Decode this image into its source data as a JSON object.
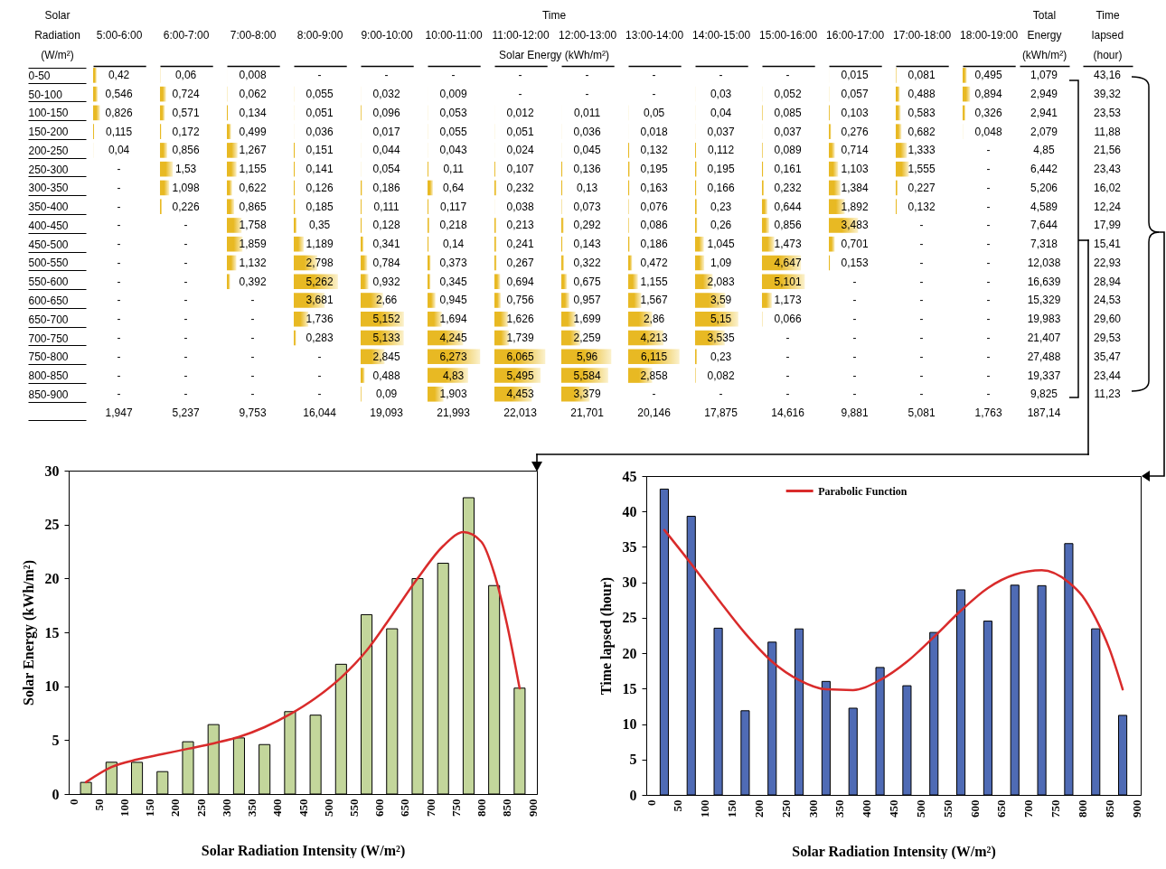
{
  "chart_data": [
    {
      "type": "heatmap",
      "xlabel": "Time",
      "ylabel": "Solar Radiation (W/m²)",
      "subtitle": "Solar Energy (kWh/m²)",
      "color": "#e8b923",
      "categories": [
        "5:00-6:00",
        "6:00-7:00",
        "7:00-8:00",
        "8:00-9:00",
        "9:00-10:00",
        "10:00-11:00",
        "11:00-12:00",
        "12:00-13:00",
        "13:00-14:00",
        "14:00-15:00",
        "15:00-16:00",
        "16:00-17:00",
        "17:00-18:00",
        "18:00-19:00"
      ],
      "y_categories": [
        "0-50",
        "50-100",
        "100-150",
        "150-200",
        "200-250",
        "250-300",
        "300-350",
        "350-400",
        "400-450",
        "450-500",
        "500-550",
        "550-600",
        "600-650",
        "650-700",
        "700-750",
        "750-800",
        "800-850",
        "850-900"
      ],
      "cells": [
        [
          0.42,
          0.06,
          0.008,
          null,
          null,
          null,
          null,
          null,
          null,
          null,
          null,
          0.015,
          0.081,
          0.495
        ],
        [
          0.546,
          0.724,
          0.062,
          0.055,
          0.032,
          0.009,
          null,
          null,
          null,
          0.03,
          0.052,
          0.057,
          0.488,
          0.894
        ],
        [
          0.826,
          0.571,
          0.134,
          0.051,
          0.096,
          0.053,
          0.012,
          0.011,
          0.05,
          0.04,
          0.085,
          0.103,
          0.583,
          0.326
        ],
        [
          0.115,
          0.172,
          0.499,
          0.036,
          0.017,
          0.055,
          0.051,
          0.036,
          0.018,
          0.037,
          0.037,
          0.276,
          0.682,
          0.048
        ],
        [
          0.04,
          0.856,
          1.267,
          0.151,
          0.044,
          0.043,
          0.024,
          0.045,
          0.132,
          0.112,
          0.089,
          0.714,
          1.333,
          null
        ],
        [
          null,
          1.53,
          1.155,
          0.141,
          0.054,
          0.11,
          0.107,
          0.136,
          0.195,
          0.195,
          0.161,
          1.103,
          1.555,
          null
        ],
        [
          null,
          1.098,
          0.622,
          0.126,
          0.186,
          0.64,
          0.232,
          0.13,
          0.163,
          0.166,
          0.232,
          1.384,
          0.227,
          null
        ],
        [
          null,
          0.226,
          0.865,
          0.185,
          0.111,
          0.117,
          0.038,
          0.073,
          0.076,
          0.23,
          0.644,
          1.892,
          0.132,
          null
        ],
        [
          null,
          null,
          1.758,
          0.35,
          0.128,
          0.218,
          0.213,
          0.292,
          0.086,
          0.26,
          0.856,
          3.483,
          null,
          null
        ],
        [
          null,
          null,
          1.859,
          1.189,
          0.341,
          0.14,
          0.241,
          0.143,
          0.186,
          1.045,
          1.473,
          0.701,
          null,
          null
        ],
        [
          null,
          null,
          1.132,
          2.798,
          0.784,
          0.373,
          0.267,
          0.322,
          0.472,
          1.09,
          4.647,
          0.153,
          null,
          null
        ],
        [
          null,
          null,
          0.392,
          5.262,
          0.932,
          0.345,
          0.694,
          0.675,
          1.155,
          2.083,
          5.101,
          null,
          null,
          null
        ],
        [
          null,
          null,
          null,
          3.681,
          2.66,
          0.945,
          0.756,
          0.957,
          1.567,
          3.59,
          1.173,
          null,
          null,
          null
        ],
        [
          null,
          null,
          null,
          1.736,
          5.152,
          1.694,
          1.626,
          1.699,
          2.86,
          5.15,
          0.066,
          null,
          null,
          null
        ],
        [
          null,
          null,
          null,
          0.283,
          5.133,
          4.245,
          1.739,
          2.259,
          4.213,
          3.535,
          null,
          null,
          null,
          null
        ],
        [
          null,
          null,
          null,
          null,
          2.845,
          6.273,
          6.065,
          5.96,
          6.115,
          0.23,
          null,
          null,
          null,
          null
        ],
        [
          null,
          null,
          null,
          null,
          0.488,
          4.83,
          5.495,
          5.584,
          2.858,
          0.082,
          null,
          null,
          null,
          null
        ],
        [
          null,
          null,
          null,
          null,
          0.09,
          1.903,
          4.453,
          3.379,
          null,
          null,
          null,
          null,
          null,
          null
        ]
      ],
      "cell_labels": [
        [
          "0,42",
          "0,06",
          "0,008",
          "-",
          "-",
          "-",
          "-",
          "-",
          "-",
          "-",
          "-",
          "0,015",
          "0,081",
          "0,495"
        ],
        [
          "0,546",
          "0,724",
          "0,062",
          "0,055",
          "0,032",
          "0,009",
          "-",
          "-",
          "-",
          "0,03",
          "0,052",
          "0,057",
          "0,488",
          "0,894"
        ],
        [
          "0,826",
          "0,571",
          "0,134",
          "0,051",
          "0,096",
          "0,053",
          "0,012",
          "0,011",
          "0,05",
          "0,04",
          "0,085",
          "0,103",
          "0,583",
          "0,326"
        ],
        [
          "0,115",
          "0,172",
          "0,499",
          "0,036",
          "0,017",
          "0,055",
          "0,051",
          "0,036",
          "0,018",
          "0,037",
          "0,037",
          "0,276",
          "0,682",
          "0,048"
        ],
        [
          "0,04",
          "0,856",
          "1,267",
          "0,151",
          "0,044",
          "0,043",
          "0,024",
          "0,045",
          "0,132",
          "0,112",
          "0,089",
          "0,714",
          "1,333",
          "-"
        ],
        [
          "-",
          "1,53",
          "1,155",
          "0,141",
          "0,054",
          "0,11",
          "0,107",
          "0,136",
          "0,195",
          "0,195",
          "0,161",
          "1,103",
          "1,555",
          "-"
        ],
        [
          "-",
          "1,098",
          "0,622",
          "0,126",
          "0,186",
          "0,64",
          "0,232",
          "0,13",
          "0,163",
          "0,166",
          "0,232",
          "1,384",
          "0,227",
          "-"
        ],
        [
          "-",
          "0,226",
          "0,865",
          "0,185",
          "0,111",
          "0,117",
          "0,038",
          "0,073",
          "0,076",
          "0,23",
          "0,644",
          "1,892",
          "0,132",
          "-"
        ],
        [
          "-",
          "-",
          "1,758",
          "0,35",
          "0,128",
          "0,218",
          "0,213",
          "0,292",
          "0,086",
          "0,26",
          "0,856",
          "3,483",
          "-",
          "-"
        ],
        [
          "-",
          "-",
          "1,859",
          "1,189",
          "0,341",
          "0,14",
          "0,241",
          "0,143",
          "0,186",
          "1,045",
          "1,473",
          "0,701",
          "-",
          "-"
        ],
        [
          "-",
          "-",
          "1,132",
          "2,798",
          "0,784",
          "0,373",
          "0,267",
          "0,322",
          "0,472",
          "1,09",
          "4,647",
          "0,153",
          "-",
          "-"
        ],
        [
          "-",
          "-",
          "0,392",
          "5,262",
          "0,932",
          "0,345",
          "0,694",
          "0,675",
          "1,155",
          "2,083",
          "5,101",
          "-",
          "-",
          "-"
        ],
        [
          "-",
          "-",
          "-",
          "3,681",
          "2,66",
          "0,945",
          "0,756",
          "0,957",
          "1,567",
          "3,59",
          "1,173",
          "-",
          "-",
          "-"
        ],
        [
          "-",
          "-",
          "-",
          "1,736",
          "5,152",
          "1,694",
          "1,626",
          "1,699",
          "2,86",
          "5,15",
          "0,066",
          "-",
          "-",
          "-"
        ],
        [
          "-",
          "-",
          "-",
          "0,283",
          "5,133",
          "4,245",
          "1,739",
          "2,259",
          "4,213",
          "3,535",
          "-",
          "-",
          "-",
          "-"
        ],
        [
          "-",
          "-",
          "-",
          "-",
          "2,845",
          "6,273",
          "6,065",
          "5,96",
          "6,115",
          "0,23",
          "-",
          "-",
          "-",
          "-"
        ],
        [
          "-",
          "-",
          "-",
          "-",
          "0,488",
          "4,83",
          "5,495",
          "5,584",
          "2,858",
          "0,082",
          "-",
          "-",
          "-",
          "-"
        ],
        [
          "-",
          "-",
          "-",
          "-",
          "0,09",
          "1,903",
          "4,453",
          "3,379",
          "-",
          "-",
          "-",
          "-",
          "-",
          "-"
        ]
      ],
      "totals": [
        "1,947",
        "5,237",
        "9,753",
        "16,044",
        "19,093",
        "21,993",
        "22,013",
        "21,701",
        "20,146",
        "17,875",
        "14,616",
        "9,881",
        "5,081",
        "1,763"
      ]
    },
    {
      "type": "heatmap",
      "categories": [
        "Total Energy (kWh/m²)",
        "Time lapsed (hour)"
      ],
      "y_categories": [
        null,
        null,
        null,
        null,
        null,
        null,
        null,
        null,
        null,
        null,
        null,
        null,
        null,
        null,
        null,
        null,
        null,
        null
      ],
      "cells": [
        [
          1.079,
          43.16
        ],
        [
          2.949,
          39.32
        ],
        [
          2.941,
          23.53
        ],
        [
          2.079,
          11.88
        ],
        [
          4.85,
          21.56
        ],
        [
          6.442,
          23.43
        ],
        [
          5.206,
          16.02
        ],
        [
          4.589,
          12.24
        ],
        [
          7.644,
          17.99
        ],
        [
          7.318,
          15.41
        ],
        [
          12.038,
          22.93
        ],
        [
          16.639,
          28.94
        ],
        [
          15.329,
          24.53
        ],
        [
          19.983,
          29.6
        ],
        [
          21.407,
          29.53
        ],
        [
          27.488,
          35.47
        ],
        [
          19.337,
          23.44
        ],
        [
          9.825,
          11.23
        ]
      ],
      "cell_labels": [
        [
          "1,079",
          "43,16"
        ],
        [
          "2,949",
          "39,32"
        ],
        [
          "2,941",
          "23,53"
        ],
        [
          "2,079",
          "11,88"
        ],
        [
          "4,85",
          "21,56"
        ],
        [
          "6,442",
          "23,43"
        ],
        [
          "5,206",
          "16,02"
        ],
        [
          "4,589",
          "12,24"
        ],
        [
          "7,644",
          "17,99"
        ],
        [
          "7,318",
          "15,41"
        ],
        [
          "12,038",
          "22,93"
        ],
        [
          "16,639",
          "28,94"
        ],
        [
          "15,329",
          "24,53"
        ],
        [
          "19,983",
          "29,60"
        ],
        [
          "21,407",
          "29,53"
        ],
        [
          "27,488",
          "35,47"
        ],
        [
          "19,337",
          "23,44"
        ],
        [
          "9,825",
          "11,23"
        ]
      ],
      "totals": [
        "187,14",
        null
      ]
    },
    {
      "type": "bar",
      "xlabel": "Solar Radiation Intensity (W/m²)",
      "ylabel": "Solar Energy (kWh/m²)",
      "x": [
        25,
        75,
        125,
        175,
        225,
        275,
        325,
        375,
        425,
        475,
        525,
        575,
        625,
        675,
        725,
        775,
        825,
        875
      ],
      "xlim": [
        0,
        900
      ],
      "xticks": [
        0,
        50,
        100,
        150,
        200,
        250,
        300,
        350,
        400,
        450,
        500,
        550,
        600,
        650,
        700,
        750,
        800,
        850,
        900
      ],
      "ylim": [
        0,
        30
      ],
      "yticks": [
        0,
        5,
        10,
        15,
        20,
        25,
        30
      ],
      "series": [
        {
          "color": "#c3d69b",
          "values": [
            1.079,
            2.949,
            2.941,
            2.079,
            4.85,
            6.442,
            5.206,
            4.589,
            7.644,
            7.318,
            12.038,
            16.639,
            15.329,
            19.983,
            21.407,
            27.488,
            19.337,
            9.825
          ]
        },
        {
          "type": "line",
          "color": "#d92b2b",
          "x": [
            25,
            75,
            125,
            175,
            225,
            275,
            325,
            375,
            425,
            475,
            525,
            575,
            625,
            675,
            725,
            765,
            800,
            825,
            850,
            875
          ],
          "values": [
            1.1,
            2.5,
            3.2,
            3.7,
            4.2,
            4.7,
            5.3,
            6.2,
            7.4,
            8.9,
            10.8,
            13.3,
            16.6,
            20.0,
            23.0,
            24.3,
            23.4,
            20.5,
            15.8,
            9.8
          ]
        }
      ]
    },
    {
      "type": "bar",
      "xlabel": "Solar Radiation Intensity (W/m²)",
      "ylabel": "Time lapsed (hour)",
      "legend": "top",
      "x": [
        25,
        75,
        125,
        175,
        225,
        275,
        325,
        375,
        425,
        475,
        525,
        575,
        625,
        675,
        725,
        775,
        825,
        875
      ],
      "xlim": [
        0,
        900
      ],
      "xticks": [
        0,
        50,
        100,
        150,
        200,
        250,
        300,
        350,
        400,
        450,
        500,
        550,
        600,
        650,
        700,
        750,
        800,
        850,
        900
      ],
      "ylim": [
        0,
        45
      ],
      "yticks": [
        0,
        5,
        10,
        15,
        20,
        25,
        30,
        35,
        40,
        45
      ],
      "series": [
        {
          "color": "#4f6bb5",
          "values": [
            43.16,
            39.32,
            23.53,
            11.88,
            21.56,
            23.43,
            16.02,
            12.24,
            17.99,
            15.41,
            22.93,
            28.94,
            24.53,
            29.6,
            29.53,
            35.47,
            23.44,
            11.23
          ]
        },
        {
          "type": "line",
          "name": "Parabolic Function",
          "color": "#d92b2b",
          "x": [
            25,
            75,
            125,
            175,
            225,
            275,
            325,
            375,
            425,
            475,
            525,
            575,
            625,
            675,
            725,
            775,
            800,
            825,
            850,
            875
          ],
          "values": [
            37.4,
            32.6,
            27.6,
            22.8,
            18.8,
            16.2,
            14.9,
            14.8,
            16.2,
            18.8,
            22.3,
            26.0,
            29.2,
            31.1,
            31.7,
            30.0,
            28.1,
            24.9,
            20.7,
            14.9
          ]
        }
      ]
    }
  ]
}
